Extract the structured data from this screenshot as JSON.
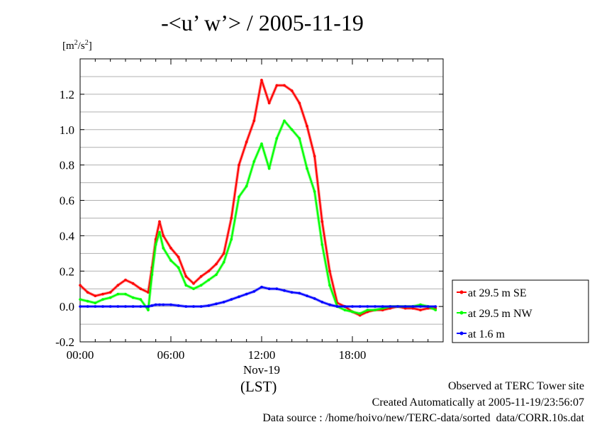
{
  "chart_data": {
    "type": "line",
    "title": "-<u’ w’> / 2005-11-19",
    "ylabel": "[m2/s2]",
    "xlabel": "(LST)",
    "date_label": "Nov-19",
    "xlim": [
      0,
      24
    ],
    "ylim": [
      -0.2,
      1.4
    ],
    "x_ticks": [
      0,
      6,
      12,
      18
    ],
    "x_tick_labels": [
      "00:00",
      "06:00",
      "12:00",
      "18:00"
    ],
    "y_ticks": [
      -0.2,
      0.0,
      0.2,
      0.4,
      0.6,
      0.8,
      1.0,
      1.2
    ],
    "y_tick_labels": [
      "-0.2",
      "0.0",
      "0.2",
      "0.4",
      "0.6",
      "0.8",
      "1.0",
      "1.2"
    ],
    "grid": true,
    "legend_position": "right",
    "x": [
      0.0,
      0.5,
      1.0,
      1.5,
      2.0,
      2.5,
      3.0,
      3.5,
      4.0,
      4.5,
      4.75,
      5.0,
      5.25,
      5.5,
      6.0,
      6.5,
      7.0,
      7.5,
      8.0,
      8.5,
      9.0,
      9.5,
      10.0,
      10.5,
      11.0,
      11.5,
      12.0,
      12.5,
      13.0,
      13.5,
      14.0,
      14.5,
      15.0,
      15.5,
      16.0,
      16.5,
      17.0,
      17.5,
      18.0,
      18.5,
      19.0,
      19.5,
      20.0,
      20.5,
      21.0,
      21.5,
      22.0,
      22.5,
      23.0,
      23.5
    ],
    "series": [
      {
        "name": "at 29.5 m SE",
        "color": "#ff0000",
        "values": [
          0.12,
          0.08,
          0.06,
          0.07,
          0.08,
          0.12,
          0.15,
          0.13,
          0.1,
          0.08,
          0.22,
          0.38,
          0.48,
          0.4,
          0.33,
          0.28,
          0.17,
          0.13,
          0.17,
          0.2,
          0.24,
          0.3,
          0.5,
          0.8,
          0.93,
          1.05,
          1.28,
          1.15,
          1.25,
          1.25,
          1.22,
          1.15,
          1.02,
          0.85,
          0.48,
          0.2,
          0.02,
          0.0,
          -0.03,
          -0.05,
          -0.03,
          -0.02,
          -0.02,
          -0.01,
          0.0,
          -0.01,
          -0.01,
          -0.02,
          -0.01,
          -0.01
        ]
      },
      {
        "name": "at 29.5 m NW",
        "color": "#00ff00",
        "values": [
          0.04,
          0.03,
          0.02,
          0.04,
          0.05,
          0.07,
          0.07,
          0.05,
          0.04,
          -0.02,
          0.18,
          0.35,
          0.42,
          0.33,
          0.26,
          0.22,
          0.12,
          0.1,
          0.12,
          0.15,
          0.18,
          0.25,
          0.38,
          0.62,
          0.68,
          0.82,
          0.92,
          0.78,
          0.95,
          1.05,
          1.0,
          0.95,
          0.78,
          0.65,
          0.35,
          0.12,
          0.0,
          -0.02,
          -0.03,
          -0.04,
          -0.02,
          -0.02,
          -0.01,
          0.0,
          0.0,
          0.0,
          0.0,
          0.01,
          0.0,
          -0.02
        ]
      },
      {
        "name": "at 1.6 m",
        "color": "#0000ff",
        "values": [
          0.0,
          0.0,
          0.0,
          0.0,
          0.0,
          0.0,
          0.0,
          0.0,
          0.0,
          0.0,
          0.005,
          0.01,
          0.01,
          0.01,
          0.01,
          0.005,
          0.0,
          0.0,
          0.0,
          0.005,
          0.015,
          0.025,
          0.04,
          0.055,
          0.07,
          0.085,
          0.11,
          0.1,
          0.1,
          0.09,
          0.08,
          0.075,
          0.06,
          0.045,
          0.025,
          0.01,
          0.0,
          0.0,
          0.0,
          0.0,
          0.0,
          0.0,
          0.0,
          0.0,
          0.0,
          0.0,
          0.0,
          0.0,
          0.0,
          0.0
        ]
      }
    ]
  },
  "footer": {
    "line1": "Observed at TERC Tower site",
    "line2": "Created Automatically at 2005-11-19/23:56:07",
    "line3": "Data source : /home/hoivo/new/TERC-data/sorted_data/CORR.10s.dat"
  }
}
